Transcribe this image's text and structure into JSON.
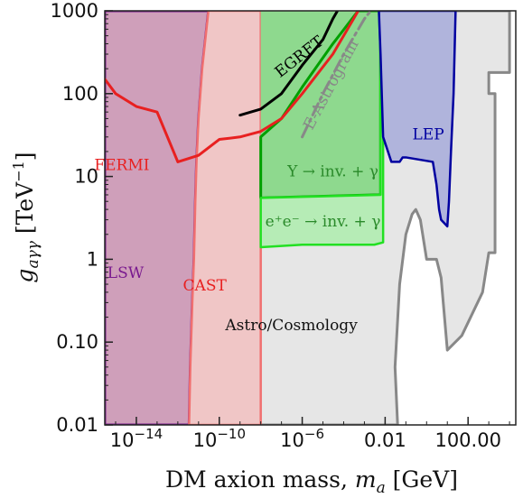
{
  "chart_data": {
    "type": "area",
    "xlabel": "DM axion mass, m_a [GeV]",
    "ylabel": "g_aγγ [TeV⁻¹]",
    "xscale": "log",
    "yscale": "log",
    "xlim": [
      3e-16,
      20000.0
    ],
    "ylim": [
      0.01,
      1000
    ],
    "grid": false,
    "x_ticks": [
      {
        "value": 1e-14,
        "base": "10",
        "exp": "−14"
      },
      {
        "value": 1e-10,
        "base": "10",
        "exp": "−10"
      },
      {
        "value": 1e-06,
        "base": "10",
        "exp": "−6"
      },
      {
        "value": 0.01,
        "label": "0.01"
      },
      {
        "value": 100,
        "label": "100.00"
      }
    ],
    "y_ticks": [
      {
        "value": 0.01,
        "label": "0.01"
      },
      {
        "value": 0.1,
        "label": "0.10"
      },
      {
        "value": 1,
        "label": "1"
      },
      {
        "value": 10,
        "label": "10"
      },
      {
        "value": 100,
        "label": "100"
      },
      {
        "value": 1000,
        "label": "1000"
      }
    ],
    "regions": [
      {
        "name": "Astro/Cosmology",
        "fill": "#e6e6e6",
        "stroke": "#888888",
        "stroke_width": 3,
        "points": [
          [
            3e-16,
            0.01
          ],
          [
            3e-16,
            1000
          ],
          [
            10000,
            1000
          ],
          [
            10000,
            180
          ],
          [
            1000,
            180
          ],
          [
            1000,
            100
          ],
          [
            2000,
            100
          ],
          [
            2000,
            1.2
          ],
          [
            1000,
            1.2
          ],
          [
            500,
            0.4
          ],
          [
            50,
            0.12
          ],
          [
            10,
            0.08
          ],
          [
            5,
            0.6
          ],
          [
            3,
            1.0
          ],
          [
            1,
            1.0
          ],
          [
            0.5,
            3
          ],
          [
            0.3,
            4
          ],
          [
            0.2,
            3.5
          ],
          [
            0.1,
            2
          ],
          [
            0.05,
            0.5
          ],
          [
            0.03,
            0.05
          ],
          [
            0.04,
            0.01
          ]
        ]
      },
      {
        "name": "LSW",
        "fill": "#cf9fba",
        "stroke": "#7a1a8f",
        "stroke_width": 3,
        "points": [
          [
            3e-16,
            0.01
          ],
          [
            3e-16,
            1000
          ],
          [
            3e-11,
            1000
          ],
          [
            1.5e-11,
            200
          ],
          [
            1e-11,
            50
          ],
          [
            8e-12,
            15
          ],
          [
            7e-12,
            5
          ],
          [
            6e-12,
            1.0
          ],
          [
            5e-12,
            0.3
          ],
          [
            4e-12,
            0.05
          ],
          [
            3.5e-12,
            0.01
          ]
        ]
      },
      {
        "name": "CAST",
        "fill": "#f0c6c6",
        "stroke": "#f07070",
        "stroke_width": 2.5,
        "points": [
          [
            3.5e-12,
            0.01
          ],
          [
            4e-12,
            0.05
          ],
          [
            5e-12,
            0.3
          ],
          [
            6e-12,
            1.0
          ],
          [
            7e-12,
            5
          ],
          [
            8e-12,
            15
          ],
          [
            1e-11,
            50
          ],
          [
            1.5e-11,
            200
          ],
          [
            3e-11,
            1000
          ],
          [
            1e-08,
            1000
          ],
          [
            1e-08,
            0.01
          ]
        ]
      },
      {
        "name": "EGRET",
        "fill": "#8ed98e",
        "stroke": "none",
        "stroke_width": 0,
        "points": [
          [
            1e-08,
            30
          ],
          [
            1e-07,
            50
          ],
          [
            1e-06,
            120
          ],
          [
            3e-05,
            400
          ],
          [
            0.0005,
            1000
          ],
          [
            1e-08,
            1000
          ]
        ]
      },
      {
        "name": "Υ → inv. + γ",
        "fill": "#8ed98e",
        "stroke": "#00a000",
        "stroke_width": 3,
        "points": [
          [
            1e-08,
            5.5
          ],
          [
            0.003,
            6
          ],
          [
            0.006,
            6
          ],
          [
            0.006,
            1000
          ],
          [
            0.0005,
            1000
          ],
          [
            3e-05,
            400
          ],
          [
            1e-06,
            120
          ],
          [
            1e-07,
            50
          ],
          [
            1e-08,
            30
          ]
        ]
      },
      {
        "name": "e⁺e⁻ → inv. + γ",
        "fill": "#b6ecb6",
        "stroke": "#22e022",
        "stroke_width": 2.5,
        "points": [
          [
            1e-08,
            1.4
          ],
          [
            1e-06,
            1.5
          ],
          [
            0.003,
            1.5
          ],
          [
            0.008,
            1.6
          ],
          [
            0.008,
            30
          ],
          [
            0.006,
            300
          ],
          [
            0.005,
            1000
          ],
          [
            0.006,
            1000
          ],
          [
            0.006,
            6
          ],
          [
            1e-08,
            5.5
          ]
        ]
      },
      {
        "name": "LEP",
        "fill": "#b0b4dc",
        "stroke": "#0000a0",
        "stroke_width": 2.5,
        "points": [
          [
            0.005,
            1000
          ],
          [
            0.006,
            300
          ],
          [
            0.008,
            30
          ],
          [
            0.02,
            15
          ],
          [
            0.05,
            15
          ],
          [
            0.07,
            17
          ],
          [
            0.1,
            17
          ],
          [
            2,
            15
          ],
          [
            3,
            8
          ],
          [
            4,
            4
          ],
          [
            5,
            3
          ],
          [
            10,
            2.5
          ],
          [
            12,
            5
          ],
          [
            15,
            20
          ],
          [
            20,
            100
          ],
          [
            25,
            1000
          ]
        ]
      }
    ],
    "lines": [
      {
        "name": "FERMI",
        "color": "#e82020",
        "width": 3,
        "points": [
          [
            3e-16,
            150
          ],
          [
            1e-15,
            100
          ],
          [
            1e-14,
            70
          ],
          [
            1e-13,
            60
          ],
          [
            1e-12,
            15
          ],
          [
            1e-11,
            18
          ],
          [
            1e-10,
            28
          ],
          [
            1e-09,
            30
          ],
          [
            1e-08,
            35
          ],
          [
            1e-07,
            50
          ],
          [
            1e-06,
            100
          ],
          [
            3e-05,
            300
          ],
          [
            0.0003,
            800
          ],
          [
            0.0005,
            1000
          ]
        ]
      },
      {
        "name": "EGRET",
        "color": "#000000",
        "width": 3,
        "points": [
          [
            1e-09,
            55
          ],
          [
            1e-08,
            65
          ],
          [
            1e-07,
            100
          ],
          [
            1e-06,
            220
          ],
          [
            1e-05,
            450
          ],
          [
            3e-05,
            800
          ],
          [
            5e-05,
            1000
          ]
        ]
      },
      {
        "name": "E-Astrogram",
        "color": "#888888",
        "width": 3,
        "dash": "14 5 3 5",
        "points": [
          [
            1e-06,
            30
          ],
          [
            1e-05,
            100
          ],
          [
            0.0001,
            300
          ],
          [
            0.001,
            800
          ],
          [
            0.002,
            1000
          ]
        ]
      }
    ],
    "labels": [
      {
        "text": "FERMI",
        "x": 2e-15,
        "y": 12,
        "color": "#e82020",
        "rotate": 0
      },
      {
        "text": "LSW",
        "x": 3e-15,
        "y": 0.6,
        "color": "#7a1a8f",
        "rotate": 0
      },
      {
        "text": "CAST",
        "x": 2e-11,
        "y": 0.42,
        "color": "#e82020",
        "rotate": 0
      },
      {
        "text": "Astro/Cosmology",
        "x": 3e-07,
        "y": 0.14,
        "color": "#111111",
        "rotate": 0
      },
      {
        "text": "LEP",
        "x": 1.2,
        "y": 28,
        "color": "#0000a0",
        "rotate": 0
      },
      {
        "text": "Υ → inv. + γ",
        "x": 3e-05,
        "y": 10,
        "color": "#2a8a2a",
        "rotate": 0
      },
      {
        "text": "e⁺e⁻ → inv. + γ",
        "x": 1e-05,
        "y": 2.5,
        "color": "#2a8a2a",
        "rotate": 0
      },
      {
        "text": "EGRET",
        "x": 1e-06,
        "y": 250,
        "color": "#000000",
        "rotate": -38
      },
      {
        "text": "E-Astrogram",
        "x": 4e-05,
        "y": 120,
        "color": "#888888",
        "rotate": -62
      }
    ]
  }
}
